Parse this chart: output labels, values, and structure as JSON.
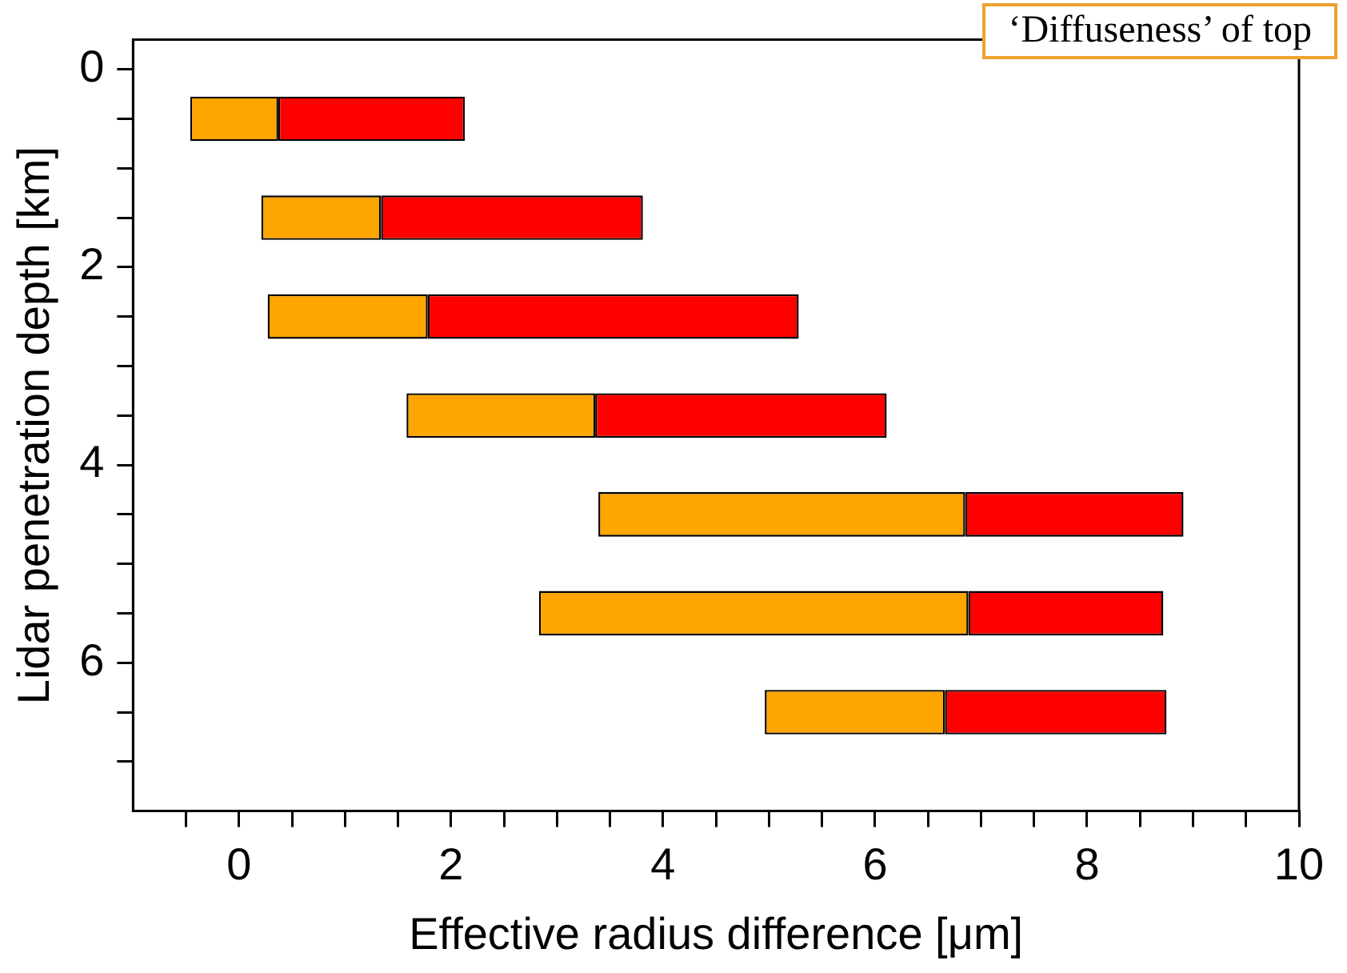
{
  "chart_data": {
    "type": "bar",
    "orientation": "horizontal",
    "x": [
      0.5,
      1.5,
      2.5,
      3.5,
      4.5,
      5.5,
      6.5
    ],
    "series": [
      {
        "color": "#ffa500",
        "base": [
          -0.46,
          0.21,
          0.27,
          1.58,
          3.39,
          2.83,
          4.96
        ],
        "values": [
          0.83,
          1.13,
          1.51,
          1.78,
          3.46,
          4.05,
          1.7
        ]
      },
      {
        "color": "#ff0000",
        "base": [
          0.37,
          1.34,
          1.78,
          3.36,
          6.85,
          6.88,
          6.66
        ],
        "values": [
          1.76,
          2.47,
          3.5,
          2.75,
          2.06,
          1.84,
          2.09
        ]
      }
    ],
    "xlabel": "Effective radius difference [μm]",
    "ylabel": "Lidar penetration depth [km]",
    "xlim": [
      -1,
      10
    ],
    "xticks": [
      {
        "value": -0.5,
        "label": null
      },
      0,
      {
        "value": 0.5,
        "label": null
      },
      {
        "value": 1,
        "label": null
      },
      {
        "value": 1.5,
        "label": null
      },
      2,
      {
        "value": 2.5,
        "label": null
      },
      {
        "value": 3,
        "label": null
      },
      {
        "value": 3.5,
        "label": null
      },
      4,
      {
        "value": 4.5,
        "label": null
      },
      {
        "value": 5,
        "label": null
      },
      {
        "value": 5.5,
        "label": null
      },
      6,
      {
        "value": 6.5,
        "label": null
      },
      {
        "value": 7,
        "label": null
      },
      {
        "value": 7.5,
        "label": null
      },
      8,
      {
        "value": 8.5,
        "label": null
      },
      {
        "value": 9,
        "label": null
      },
      {
        "value": 9.5,
        "label": null
      },
      10
    ],
    "ylim": [
      7.5,
      -0.3
    ],
    "yticks": [
      0,
      {
        "value": 0.5,
        "label": null
      },
      {
        "value": 1,
        "label": null
      },
      {
        "value": 1.5,
        "label": null
      },
      2,
      {
        "value": 2.5,
        "label": null
      },
      {
        "value": 3,
        "label": null
      },
      {
        "value": 3.5,
        "label": null
      },
      4,
      {
        "value": 4.5,
        "label": null
      },
      {
        "value": 5,
        "label": null
      },
      {
        "value": 5.5,
        "label": null
      },
      6,
      {
        "value": 6.5,
        "label": null
      },
      {
        "value": 7,
        "label": null
      }
    ],
    "annotations": [
      "‘Diffuseness’ of top"
    ]
  }
}
